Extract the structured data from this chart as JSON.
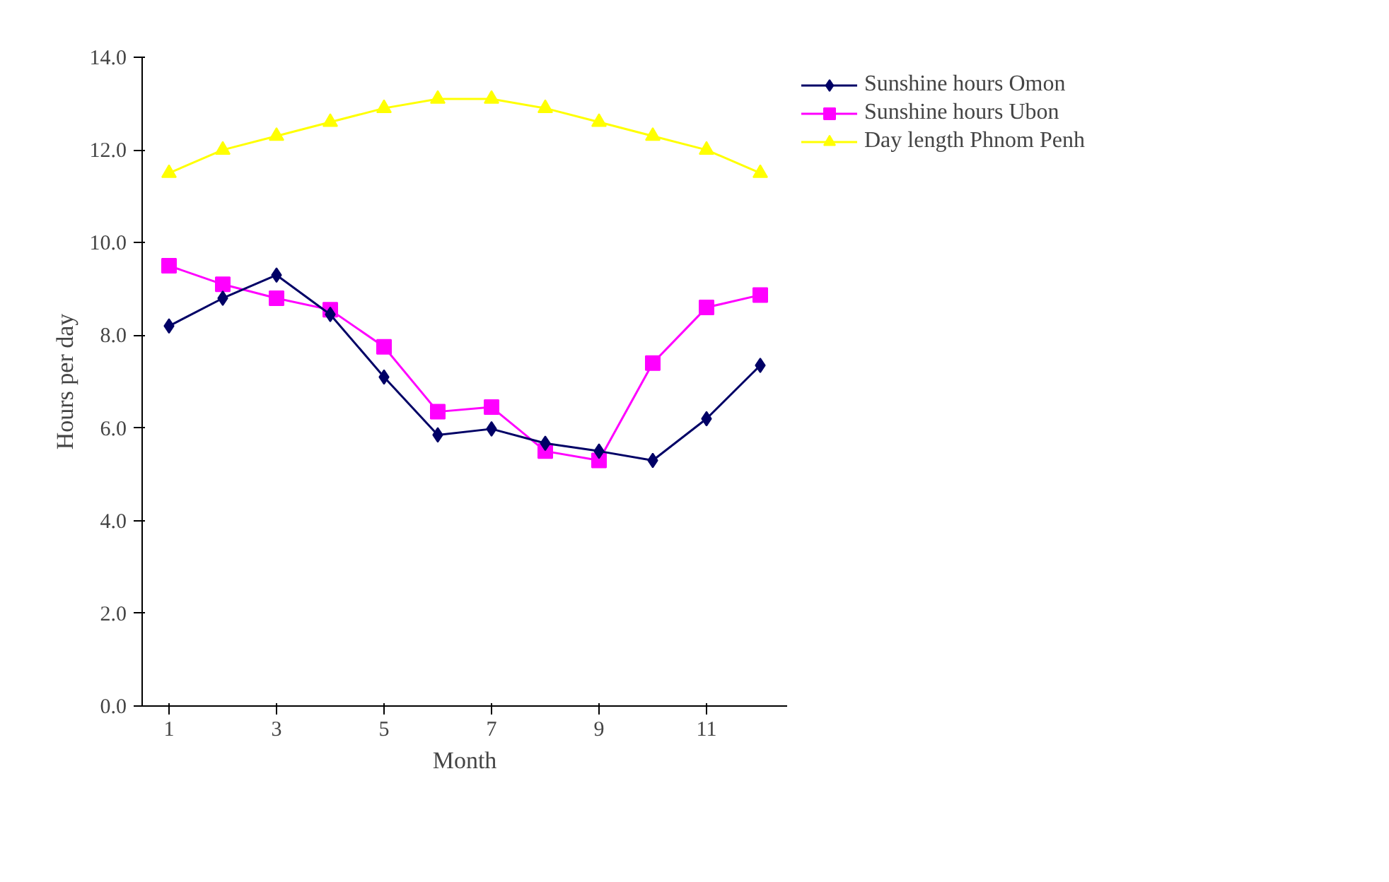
{
  "chart_data": {
    "type": "line",
    "xlabel": "Month",
    "ylabel": "Hours per day",
    "categories": [
      "1",
      null,
      "3",
      null,
      "5",
      null,
      "7",
      null,
      "9",
      null,
      "11",
      null
    ],
    "series": [
      {
        "name": "Sunshine hours Omon",
        "color": "#000066",
        "marker": "diamond",
        "values": [
          8.2,
          8.8,
          9.3,
          8.45,
          7.1,
          5.85,
          5.98,
          5.67,
          5.5,
          5.3,
          6.2,
          7.35
        ]
      },
      {
        "name": "Sunshine hours Ubon",
        "color": "#ff00ff",
        "marker": "square",
        "values": [
          9.5,
          9.1,
          8.8,
          8.55,
          7.75,
          6.35,
          6.45,
          5.5,
          5.3,
          7.4,
          8.6,
          8.87
        ]
      },
      {
        "name": "Day length Phnom Penh",
        "color": "#ffff00",
        "marker": "triangle",
        "values": [
          11.5,
          12.0,
          12.3,
          12.6,
          12.9,
          13.1,
          13.1,
          12.9,
          12.6,
          12.3,
          12.0,
          11.5
        ]
      }
    ],
    "ylim": [
      0,
      14
    ],
    "yticks": [
      {
        "value": 0,
        "label": "0.0"
      },
      {
        "value": 2,
        "label": "2.0"
      },
      {
        "value": 4,
        "label": "4.0"
      },
      {
        "value": 6,
        "label": "6.0"
      },
      {
        "value": 8,
        "label": "8.0"
      },
      {
        "value": 10,
        "label": "10.0"
      },
      {
        "value": 12,
        "label": "12.0"
      },
      {
        "value": 14,
        "label": "14.0"
      }
    ],
    "grid": false,
    "legend": "top right"
  }
}
